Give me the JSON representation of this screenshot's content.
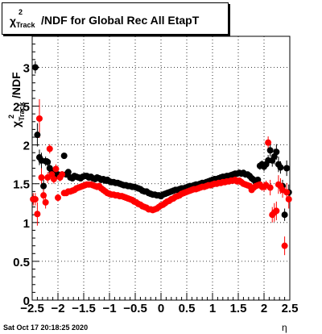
{
  "chart_data": {
    "type": "scatter",
    "title": "χ²_{Track}/NDF for Global Rec All EtapT",
    "title_parts": {
      "chi": "χ",
      "sup": "2",
      "sub": "Track",
      "rest": "/NDF for Global Rec All EtapT"
    },
    "xlabel": "η",
    "ylabel": "χ²_{Track}/NDF",
    "ylabel_parts": {
      "chi": "χ",
      "sup": "2",
      "sub": "Track",
      "rest": "/NDF"
    },
    "xlim": [
      -2.5,
      2.5
    ],
    "ylim": [
      0,
      3.4
    ],
    "x_ticks": [
      -2.5,
      -2,
      -1.5,
      -1,
      -0.5,
      0,
      0.5,
      1,
      1.5,
      2,
      2.5
    ],
    "x_tick_labels": [
      "−2.5",
      "−2",
      "−1.5",
      "−1",
      "−0.5",
      "0",
      "0.5",
      "1",
      "1.5",
      "2",
      "2.5"
    ],
    "y_ticks": [
      0,
      0.5,
      1,
      1.5,
      2,
      2.5,
      3
    ],
    "y_tick_labels": [
      "0",
      "0.5",
      "1",
      "1.5",
      "2",
      "2.5",
      "3"
    ],
    "grid": true,
    "series": [
      {
        "color": "#000000",
        "x": [
          -2.48,
          -2.44,
          -2.4,
          -2.36,
          -2.32,
          -2.28,
          -2.24,
          -2.2,
          -2.16,
          -2.12,
          -2.08,
          -2.04,
          -2.0,
          -1.96,
          -1.92,
          -1.88,
          -1.84,
          -1.8,
          -1.76,
          -1.72,
          -1.68,
          -1.64,
          -1.6,
          -1.56,
          -1.52,
          -1.48,
          -1.44,
          -1.4,
          -1.36,
          -1.32,
          -1.28,
          -1.24,
          -1.2,
          -1.16,
          -1.12,
          -1.08,
          -1.04,
          -1.0,
          -0.96,
          -0.92,
          -0.88,
          -0.84,
          -0.8,
          -0.76,
          -0.72,
          -0.68,
          -0.64,
          -0.6,
          -0.56,
          -0.52,
          -0.48,
          -0.44,
          -0.4,
          -0.36,
          -0.32,
          -0.28,
          -0.24,
          -0.2,
          -0.16,
          -0.12,
          -0.08,
          -0.04,
          0.0,
          0.04,
          0.08,
          0.12,
          0.16,
          0.2,
          0.24,
          0.28,
          0.32,
          0.36,
          0.4,
          0.44,
          0.48,
          0.52,
          0.56,
          0.6,
          0.64,
          0.68,
          0.72,
          0.76,
          0.8,
          0.84,
          0.88,
          0.92,
          0.96,
          1.0,
          1.04,
          1.08,
          1.12,
          1.16,
          1.2,
          1.24,
          1.28,
          1.32,
          1.36,
          1.4,
          1.44,
          1.48,
          1.52,
          1.56,
          1.6,
          1.64,
          1.68,
          1.72,
          1.76,
          1.8,
          1.84,
          1.88,
          1.92,
          1.96,
          2.0,
          2.04,
          2.08,
          2.12,
          2.16,
          2.2,
          2.24,
          2.28,
          2.32,
          2.36,
          2.4,
          2.44,
          2.48
        ],
        "y": [
          1.3,
          3.0,
          2.13,
          1.84,
          1.8,
          1.47,
          1.79,
          1.78,
          1.7,
          1.64,
          1.66,
          1.6,
          1.62,
          1.6,
          1.62,
          1.86,
          1.62,
          1.65,
          1.58,
          1.57,
          1.6,
          1.59,
          1.58,
          1.57,
          1.59,
          1.6,
          1.6,
          1.58,
          1.59,
          1.57,
          1.56,
          1.58,
          1.57,
          1.55,
          1.56,
          1.54,
          1.55,
          1.53,
          1.52,
          1.52,
          1.51,
          1.51,
          1.5,
          1.49,
          1.48,
          1.48,
          1.47,
          1.47,
          1.46,
          1.46,
          1.45,
          1.44,
          1.43,
          1.41,
          1.4,
          1.4,
          1.38,
          1.37,
          1.36,
          1.36,
          1.35,
          1.35,
          1.34,
          1.36,
          1.37,
          1.38,
          1.39,
          1.4,
          1.41,
          1.42,
          1.42,
          1.43,
          1.44,
          1.44,
          1.45,
          1.46,
          1.47,
          1.47,
          1.48,
          1.49,
          1.49,
          1.5,
          1.51,
          1.51,
          1.52,
          1.53,
          1.54,
          1.55,
          1.56,
          1.56,
          1.57,
          1.58,
          1.59,
          1.59,
          1.6,
          1.6,
          1.61,
          1.62,
          1.63,
          1.63,
          1.64,
          1.63,
          1.64,
          1.62,
          1.62,
          1.6,
          1.57,
          1.55,
          1.52,
          1.55,
          1.73,
          1.75,
          1.72,
          1.75,
          1.8,
          1.93,
          1.8,
          1.85,
          1.91,
          1.75,
          1.71,
          1.47,
          1.1,
          1.7,
          1.39
        ],
        "err": [
          0.06,
          0.08,
          0.15,
          0.1,
          0.1,
          0.08,
          0.06,
          0.05,
          0.05,
          0.05,
          0.05,
          0.04,
          0.04,
          0.04,
          0.03,
          0.03,
          0.02,
          0.02,
          0.02,
          0.02,
          0.02,
          0.02,
          0.02,
          0.02,
          0.02,
          0.02,
          0.02,
          0.02,
          0.02,
          0.02,
          0.02,
          0.02,
          0.02,
          0.02,
          0.02,
          0.02,
          0.02,
          0.02,
          0.02,
          0.02,
          0.02,
          0.02,
          0.02,
          0.02,
          0.02,
          0.02,
          0.02,
          0.02,
          0.02,
          0.02,
          0.02,
          0.02,
          0.02,
          0.02,
          0.02,
          0.02,
          0.02,
          0.02,
          0.02,
          0.02,
          0.02,
          0.02,
          0.02,
          0.02,
          0.02,
          0.02,
          0.02,
          0.02,
          0.02,
          0.02,
          0.02,
          0.02,
          0.02,
          0.02,
          0.02,
          0.02,
          0.02,
          0.02,
          0.02,
          0.02,
          0.02,
          0.02,
          0.02,
          0.02,
          0.02,
          0.02,
          0.02,
          0.02,
          0.02,
          0.02,
          0.02,
          0.02,
          0.02,
          0.02,
          0.02,
          0.02,
          0.02,
          0.02,
          0.02,
          0.02,
          0.02,
          0.02,
          0.02,
          0.02,
          0.02,
          0.02,
          0.03,
          0.03,
          0.03,
          0.04,
          0.05,
          0.05,
          0.06,
          0.06,
          0.07,
          0.08,
          0.08,
          0.1,
          0.1,
          0.1,
          0.08,
          0.08,
          0.08,
          0.1,
          0.1
        ]
      },
      {
        "color": "#ff0000",
        "x": [
          -2.48,
          -2.44,
          -2.4,
          -2.36,
          -2.32,
          -2.28,
          -2.24,
          -2.2,
          -2.16,
          -2.12,
          -2.08,
          -2.04,
          -2.0,
          -1.96,
          -1.92,
          -1.88,
          -1.84,
          -1.8,
          -1.76,
          -1.72,
          -1.68,
          -1.64,
          -1.6,
          -1.56,
          -1.52,
          -1.48,
          -1.44,
          -1.4,
          -1.36,
          -1.32,
          -1.28,
          -1.24,
          -1.2,
          -1.16,
          -1.12,
          -1.08,
          -1.04,
          -1.0,
          -0.96,
          -0.92,
          -0.88,
          -0.84,
          -0.8,
          -0.76,
          -0.72,
          -0.68,
          -0.64,
          -0.6,
          -0.56,
          -0.52,
          -0.48,
          -0.44,
          -0.4,
          -0.36,
          -0.32,
          -0.28,
          -0.24,
          -0.2,
          -0.16,
          -0.12,
          -0.08,
          -0.04,
          0.0,
          0.04,
          0.08,
          0.12,
          0.16,
          0.2,
          0.24,
          0.28,
          0.32,
          0.36,
          0.4,
          0.44,
          0.48,
          0.52,
          0.56,
          0.6,
          0.64,
          0.68,
          0.72,
          0.76,
          0.8,
          0.84,
          0.88,
          0.92,
          0.96,
          1.0,
          1.04,
          1.08,
          1.12,
          1.16,
          1.2,
          1.24,
          1.28,
          1.32,
          1.36,
          1.4,
          1.44,
          1.48,
          1.52,
          1.56,
          1.6,
          1.64,
          1.68,
          1.72,
          1.76,
          1.8,
          1.84,
          1.88,
          1.92,
          1.96,
          2.0,
          2.04,
          2.08,
          2.12,
          2.16,
          2.2,
          2.24,
          2.28,
          2.32,
          2.36,
          2.4,
          2.44,
          2.48
        ],
        "y": [
          1.3,
          1.3,
          1.11,
          2.34,
          1.58,
          1.35,
          1.26,
          1.58,
          1.95,
          1.62,
          1.56,
          1.69,
          1.32,
          1.58,
          1.62,
          1.38,
          1.38,
          1.4,
          1.4,
          1.41,
          1.42,
          1.44,
          1.45,
          1.46,
          1.47,
          1.48,
          1.49,
          1.49,
          1.49,
          1.48,
          1.47,
          1.46,
          1.47,
          1.44,
          1.42,
          1.4,
          1.38,
          1.37,
          1.36,
          1.36,
          1.35,
          1.35,
          1.34,
          1.34,
          1.33,
          1.32,
          1.31,
          1.3,
          1.29,
          1.27,
          1.26,
          1.24,
          1.23,
          1.21,
          1.2,
          1.19,
          1.17,
          1.17,
          1.16,
          1.17,
          1.18,
          1.2,
          1.22,
          1.23,
          1.25,
          1.27,
          1.28,
          1.3,
          1.31,
          1.33,
          1.34,
          1.35,
          1.37,
          1.38,
          1.39,
          1.4,
          1.41,
          1.42,
          1.43,
          1.43,
          1.44,
          1.45,
          1.46,
          1.46,
          1.47,
          1.48,
          1.48,
          1.49,
          1.5,
          1.5,
          1.51,
          1.51,
          1.52,
          1.52,
          1.53,
          1.53,
          1.54,
          1.54,
          1.55,
          1.53,
          1.54,
          1.52,
          1.5,
          1.49,
          1.48,
          1.47,
          1.42,
          1.45,
          1.47,
          1.48,
          1.49,
          1.46,
          1.46,
          1.48,
          2.03,
          1.45,
          1.1,
          1.13,
          1.15,
          1.49,
          1.47,
          1.42,
          0.7,
          1.39,
          1.3
        ],
        "err": [
          0.08,
          0.08,
          0.15,
          0.25,
          0.12,
          0.1,
          0.08,
          0.07,
          0.06,
          0.06,
          0.06,
          0.06,
          0.05,
          0.05,
          0.04,
          0.04,
          0.03,
          0.03,
          0.03,
          0.02,
          0.02,
          0.02,
          0.02,
          0.02,
          0.02,
          0.02,
          0.02,
          0.02,
          0.02,
          0.02,
          0.02,
          0.02,
          0.02,
          0.02,
          0.02,
          0.02,
          0.02,
          0.02,
          0.02,
          0.02,
          0.02,
          0.02,
          0.02,
          0.02,
          0.02,
          0.02,
          0.02,
          0.02,
          0.02,
          0.02,
          0.02,
          0.02,
          0.02,
          0.02,
          0.02,
          0.02,
          0.02,
          0.02,
          0.02,
          0.02,
          0.02,
          0.02,
          0.02,
          0.02,
          0.02,
          0.02,
          0.02,
          0.02,
          0.02,
          0.02,
          0.02,
          0.02,
          0.02,
          0.02,
          0.02,
          0.02,
          0.02,
          0.02,
          0.02,
          0.02,
          0.02,
          0.02,
          0.02,
          0.02,
          0.02,
          0.02,
          0.02,
          0.02,
          0.02,
          0.02,
          0.02,
          0.02,
          0.02,
          0.02,
          0.02,
          0.02,
          0.02,
          0.02,
          0.02,
          0.02,
          0.02,
          0.02,
          0.02,
          0.02,
          0.02,
          0.02,
          0.03,
          0.03,
          0.03,
          0.04,
          0.05,
          0.05,
          0.06,
          0.06,
          0.08,
          0.1,
          0.1,
          0.12,
          0.12,
          0.12,
          0.1,
          0.1,
          0.12,
          0.12,
          0.12
        ]
      }
    ]
  },
  "footer": {
    "timestamp": "Sat Oct 17 20:18:25 2020"
  }
}
